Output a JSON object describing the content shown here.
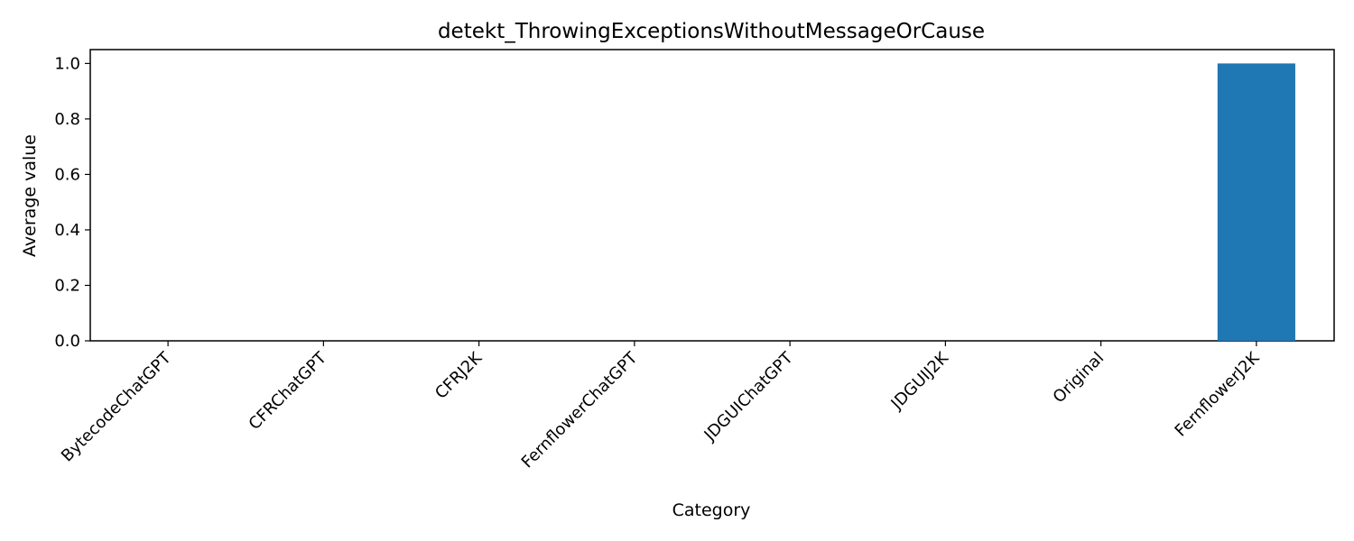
{
  "chart_data": {
    "type": "bar",
    "title": "detekt_ThrowingExceptionsWithoutMessageOrCause",
    "xlabel": "Category",
    "ylabel": "Average value",
    "categories": [
      "BytecodeChatGPT",
      "CFRChatGPT",
      "CFRJ2K",
      "FernflowerChatGPT",
      "JDGUIChatGPT",
      "JDGUIJ2K",
      "Original",
      "FernflowerJ2K"
    ],
    "values": [
      0,
      0,
      0,
      0,
      0,
      0,
      0,
      1.0
    ],
    "ylim": [
      0,
      1.05
    ],
    "yticks": [
      "0.0",
      "0.2",
      "0.4",
      "0.6",
      "0.8",
      "1.0"
    ],
    "grid": false,
    "bar_color": "#1f77b4"
  }
}
